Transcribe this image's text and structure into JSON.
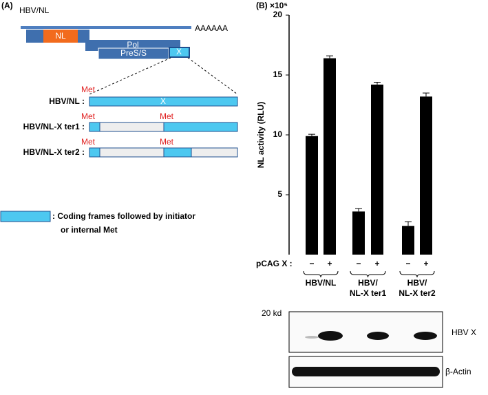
{
  "panel_a": {
    "label": "(A)",
    "construct": "HBV/NL",
    "polya": "AAAAAA",
    "nl": "NL",
    "pol": "Pol",
    "pres": "PreS/S",
    "x": "X",
    "rows": [
      {
        "name": "HBV/NL :",
        "met1": "Met",
        "x": "X"
      },
      {
        "name": "HBV/NL-X ter1 :",
        "met1": "Met",
        "met2": "Met"
      },
      {
        "name": "HBV/NL-X ter2 :",
        "met1": "Met",
        "met2": "Met"
      }
    ],
    "legend": [
      ": Coding frames followed by initiator",
      "or internal Met"
    ]
  },
  "chart_data": {
    "type": "bar",
    "panel_label": "(B)",
    "scale_label": "×10⁵",
    "y_label": "NL activity (RLU)",
    "x_label": "pCAG X :",
    "categories": [
      "−",
      "+",
      "−",
      "+",
      "−",
      "+"
    ],
    "values": [
      9.9,
      16.4,
      3.6,
      14.2,
      2.4,
      13.2
    ],
    "errors": [
      0.15,
      0.2,
      0.25,
      0.2,
      0.35,
      0.3
    ],
    "groups": [
      [
        "HBV/NL"
      ],
      [
        "HBV/",
        "NL-X ter1"
      ],
      [
        "HBV/",
        "NL-X ter2"
      ]
    ],
    "color": "#000000",
    "ylim": [
      0,
      20
    ],
    "yticks": [
      5,
      10,
      15,
      20
    ]
  },
  "blot": {
    "marker": "20 kd",
    "band1": "HBV X",
    "band2": "β-Actin"
  }
}
